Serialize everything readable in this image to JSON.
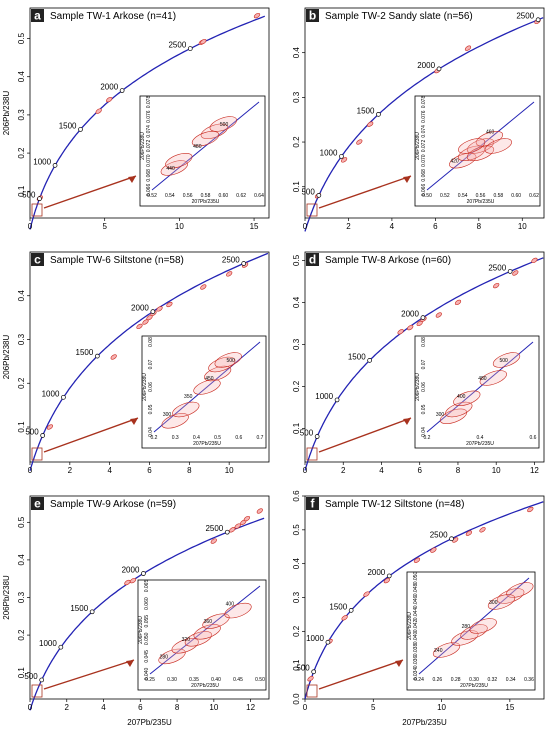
{
  "colors": {
    "concordia": "#2323b4",
    "ellipse_stroke": "#c8281e",
    "ellipse_fill": "#f7b2b2",
    "marker_fill": "#ffffff",
    "arrow": "#a8321e",
    "label_bg": "#222222",
    "axes": "#000000"
  },
  "chart_data": [
    {
      "type": "scatter",
      "panel": "a",
      "title": "Sample TW-1 Arkose (n=41)",
      "xlabel": "",
      "ylabel": "206Pb/238U",
      "xlim": [
        0,
        16
      ],
      "ylim": [
        0.03,
        0.58
      ],
      "xticks": [
        "0",
        "5",
        "10",
        "15"
      ],
      "yticks": [
        "0.1",
        "0.2",
        "0.3",
        "0.4",
        "0.5"
      ],
      "age_markers": [
        "500",
        "1000",
        "1500",
        "2000",
        "2500"
      ],
      "ellipses": [
        [
          0.66,
          0.082
        ],
        [
          4.6,
          0.31
        ],
        [
          5.3,
          0.34
        ],
        [
          11.5,
          0.49
        ],
        [
          11.6,
          0.492
        ],
        [
          15.2,
          0.56
        ]
      ],
      "inset": {
        "xlabel": "207Pb/235U",
        "ylabel": "206Pb/238U",
        "xticks": [
          "0.52",
          "0.54",
          "0.56",
          "0.58",
          "0.60",
          "0.62",
          "0.64"
        ],
        "yticks": [
          "0.066",
          "0.068",
          "0.070",
          "0.072",
          "0.074",
          "0.076",
          "0.078"
        ],
        "age_labels": [
          "440",
          "480",
          "500"
        ],
        "ellipses": [
          [
            0.545,
            0.069
          ],
          [
            0.55,
            0.07
          ],
          [
            0.59,
            0.074
          ],
          [
            0.6,
            0.075
          ],
          [
            0.58,
            0.073
          ]
        ]
      }
    },
    {
      "type": "scatter",
      "panel": "b",
      "title": "Sample TW-2 Sandy slate (n=56)",
      "xlabel": "",
      "ylabel": "",
      "xlim": [
        0,
        11
      ],
      "ylim": [
        0.03,
        0.5
      ],
      "xticks": [
        "0",
        "2",
        "4",
        "6",
        "8",
        "10"
      ],
      "yticks": [
        "0.1",
        "0.2",
        "0.3",
        "0.4"
      ],
      "age_markers": [
        "500",
        "1000",
        "1500",
        "2000",
        "2500"
      ],
      "ellipses": [
        [
          0.6,
          0.08
        ],
        [
          1.8,
          0.16
        ],
        [
          2.5,
          0.2
        ],
        [
          3.0,
          0.24
        ],
        [
          6.1,
          0.36
        ],
        [
          7.5,
          0.41
        ],
        [
          10.7,
          0.47
        ]
      ],
      "inset": {
        "xlabel": "207Pb/235U",
        "ylabel": "206Pb/238U",
        "xticks": [
          "0.50",
          "0.52",
          "0.54",
          "0.56",
          "0.58",
          "0.60",
          "0.62"
        ],
        "yticks": [
          "0.066",
          "0.068",
          "0.070",
          "0.072",
          "0.074",
          "0.076",
          "0.078"
        ],
        "age_labels": [
          "420",
          "460"
        ],
        "ellipses": [
          [
            0.54,
            0.07
          ],
          [
            0.55,
            0.071
          ],
          [
            0.56,
            0.072
          ],
          [
            0.57,
            0.073
          ],
          [
            0.56,
            0.071
          ],
          [
            0.55,
            0.072
          ],
          [
            0.58,
            0.072
          ]
        ]
      }
    },
    {
      "type": "scatter",
      "panel": "c",
      "title": "Sample TW-6  Siltstone (n=58)",
      "xlabel": "",
      "ylabel": "206Pb/238U",
      "xlim": [
        0,
        12
      ],
      "ylim": [
        0.02,
        0.5
      ],
      "xticks": [
        "0",
        "2",
        "4",
        "6",
        "8",
        "10"
      ],
      "yticks": [
        "0.1",
        "0.2",
        "0.3",
        "0.4"
      ],
      "age_markers": [
        "500",
        "1000",
        "1500",
        "2000",
        "2500"
      ],
      "ellipses": [
        [
          1.0,
          0.1
        ],
        [
          4.2,
          0.26
        ],
        [
          5.5,
          0.33
        ],
        [
          5.8,
          0.34
        ],
        [
          6.0,
          0.35
        ],
        [
          6.2,
          0.36
        ],
        [
          6.5,
          0.37
        ],
        [
          7.0,
          0.38
        ],
        [
          8.7,
          0.42
        ],
        [
          10.0,
          0.45
        ],
        [
          10.8,
          0.47
        ]
      ],
      "inset": {
        "xlabel": "207Pb/235U",
        "ylabel": "206Pb/238U",
        "xticks": [
          "0.2",
          "0.3",
          "0.4",
          "0.5",
          "0.6",
          "0.7"
        ],
        "yticks": [
          "0.04",
          "0.05",
          "0.06",
          "0.07",
          "0.08"
        ],
        "age_labels": [
          "300",
          "350",
          "450",
          "500"
        ],
        "ellipses": [
          [
            0.3,
            0.045
          ],
          [
            0.35,
            0.05
          ],
          [
            0.45,
            0.06
          ],
          [
            0.5,
            0.066
          ],
          [
            0.52,
            0.07
          ],
          [
            0.55,
            0.072
          ]
        ]
      }
    },
    {
      "type": "scatter",
      "panel": "d",
      "title": "Sample TW-8  Arkose (n=60)",
      "xlabel": "",
      "ylabel": "",
      "xlim": [
        0,
        12.5
      ],
      "ylim": [
        0.02,
        0.52
      ],
      "xticks": [
        "0",
        "2",
        "4",
        "6",
        "8",
        "10",
        "12"
      ],
      "yticks": [
        "0.1",
        "0.2",
        "0.3",
        "0.4",
        "0.5"
      ],
      "age_markers": [
        "500",
        "1000",
        "1500",
        "2000",
        "2500"
      ],
      "ellipses": [
        [
          5.0,
          0.33
        ],
        [
          5.5,
          0.34
        ],
        [
          6.0,
          0.35
        ],
        [
          6.2,
          0.36
        ],
        [
          7.0,
          0.37
        ],
        [
          8.0,
          0.4
        ],
        [
          10.0,
          0.44
        ],
        [
          11.0,
          0.47
        ],
        [
          12.0,
          0.5
        ]
      ],
      "inset": {
        "xlabel": "207Pb/235U",
        "ylabel": "206Pb/238U",
        "xticks": [
          "0.2",
          "0.4",
          "0.6"
        ],
        "yticks": [
          "0.04",
          "0.05",
          "0.06",
          "0.07",
          "0.08"
        ],
        "age_labels": [
          "300",
          "400",
          "480",
          "500"
        ],
        "ellipses": [
          [
            0.3,
            0.047
          ],
          [
            0.32,
            0.05
          ],
          [
            0.35,
            0.055
          ],
          [
            0.45,
            0.064
          ],
          [
            0.5,
            0.072
          ]
        ]
      }
    },
    {
      "type": "scatter",
      "panel": "e",
      "title": "Sample TW-9  Arkose  (n=59)",
      "xlabel": "207Pb/235U",
      "ylabel": "206Pb/238U",
      "xlim": [
        0,
        13
      ],
      "ylim": [
        0.03,
        0.57
      ],
      "xticks": [
        "0",
        "2",
        "4",
        "6",
        "8",
        "10",
        "12"
      ],
      "yticks": [
        "0.1",
        "0.2",
        "0.3",
        "0.4",
        "0.5"
      ],
      "age_markers": [
        "500",
        "1000",
        "1500",
        "2000",
        "2500"
      ],
      "ellipses": [
        [
          5.3,
          0.34
        ],
        [
          5.6,
          0.345
        ],
        [
          10.0,
          0.45
        ],
        [
          11.0,
          0.48
        ],
        [
          11.3,
          0.49
        ],
        [
          11.6,
          0.5
        ],
        [
          11.8,
          0.51
        ],
        [
          12.5,
          0.53
        ]
      ],
      "inset": {
        "xlabel": "207Pb/235U",
        "ylabel": "206Pb/238U",
        "xticks": [
          "0.25",
          "0.30",
          "0.35",
          "0.40",
          "0.45",
          "0.50"
        ],
        "yticks": [
          "0.040",
          "0.045",
          "0.050",
          "0.055",
          "0.060",
          "0.065"
        ],
        "age_labels": [
          "280",
          "320",
          "360",
          "400"
        ],
        "ellipses": [
          [
            0.3,
            0.045
          ],
          [
            0.33,
            0.048
          ],
          [
            0.36,
            0.05
          ],
          [
            0.38,
            0.052
          ],
          [
            0.4,
            0.055
          ],
          [
            0.45,
            0.058
          ]
        ]
      }
    },
    {
      "type": "scatter",
      "panel": "f",
      "title": "Sample TW-12  Siltstone (n=48)",
      "xlabel": "207Pb/235U",
      "ylabel": "",
      "xlim": [
        0,
        17.5
      ],
      "ylim": [
        0,
        0.6
      ],
      "xticks": [
        "0",
        "5",
        "10",
        "15"
      ],
      "yticks": [
        "0.0",
        "0.1",
        "0.2",
        "0.3",
        "0.4",
        "0.5",
        "0.6"
      ],
      "age_markers": [
        "500",
        "1000",
        "1500",
        "2000",
        "2500"
      ],
      "ellipses": [
        [
          0.4,
          0.06
        ],
        [
          1.8,
          0.17
        ],
        [
          2.9,
          0.24
        ],
        [
          4.5,
          0.31
        ],
        [
          6.0,
          0.35
        ],
        [
          8.2,
          0.41
        ],
        [
          9.4,
          0.44
        ],
        [
          11.0,
          0.47
        ],
        [
          12.0,
          0.49
        ],
        [
          13.0,
          0.5
        ],
        [
          16.5,
          0.56
        ]
      ],
      "inset": {
        "xlabel": "207Pb/235U",
        "ylabel": "206Pb/238U",
        "xticks": [
          "0.24",
          "0.26",
          "0.28",
          "0.30",
          "0.32",
          "0.34",
          "0.36"
        ],
        "yticks": [
          "0.034",
          "0.036",
          "0.038",
          "0.040",
          "0.042",
          "0.044",
          "0.046",
          "0.048",
          "0.050"
        ],
        "age_labels": [
          "240",
          "280",
          "300"
        ],
        "ellipses": [
          [
            0.27,
            0.038
          ],
          [
            0.29,
            0.04
          ],
          [
            0.3,
            0.041
          ],
          [
            0.31,
            0.042
          ],
          [
            0.34,
            0.047
          ],
          [
            0.35,
            0.048
          ],
          [
            0.33,
            0.046
          ]
        ]
      }
    }
  ]
}
